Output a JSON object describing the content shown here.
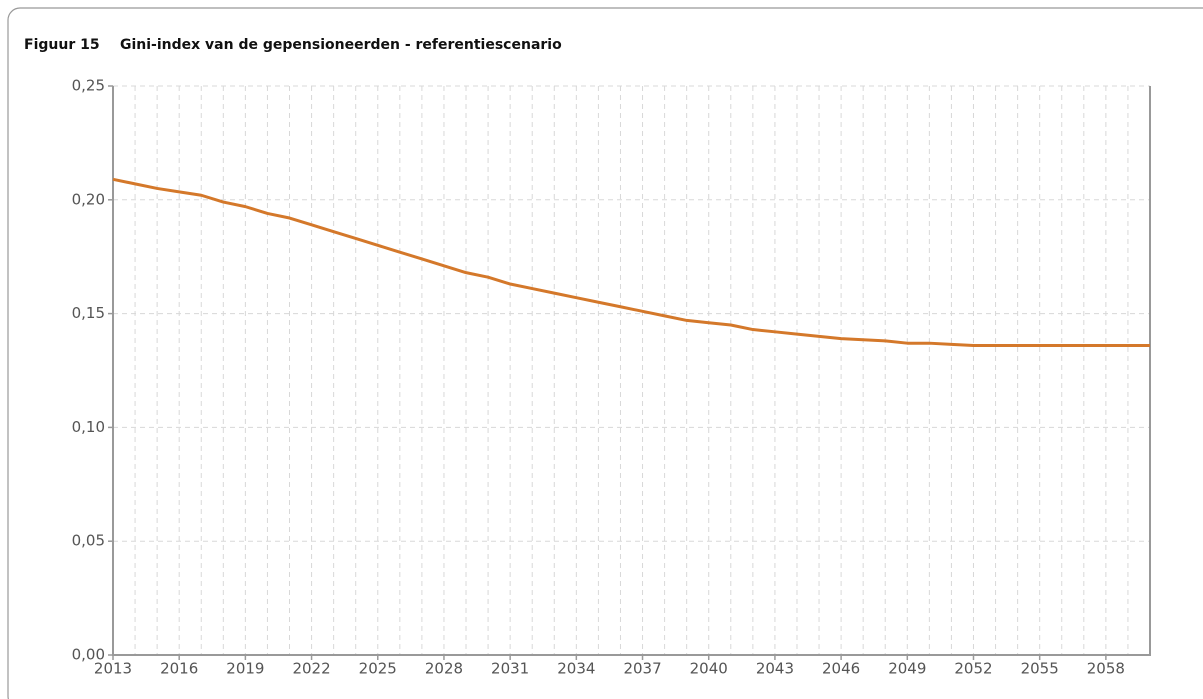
{
  "chart_data": {
    "type": "line",
    "figure_label": "Figuur 15",
    "title": "Gini-index van de gepensioneerden - referentiescenario",
    "x": [
      2013,
      2014,
      2015,
      2016,
      2017,
      2018,
      2019,
      2020,
      2021,
      2022,
      2023,
      2024,
      2025,
      2026,
      2027,
      2028,
      2029,
      2030,
      2031,
      2032,
      2033,
      2034,
      2035,
      2036,
      2037,
      2038,
      2039,
      2040,
      2041,
      2042,
      2043,
      2044,
      2045,
      2046,
      2047,
      2048,
      2049,
      2050,
      2051,
      2052,
      2053,
      2054,
      2055,
      2056,
      2057,
      2058,
      2059,
      2060
    ],
    "series": [
      {
        "name": "Gini-index",
        "color": "#d4782a",
        "values": [
          0.209,
          0.207,
          0.205,
          0.2035,
          0.202,
          0.199,
          0.197,
          0.194,
          0.192,
          0.189,
          0.186,
          0.183,
          0.18,
          0.177,
          0.174,
          0.171,
          0.168,
          0.166,
          0.163,
          0.161,
          0.159,
          0.157,
          0.155,
          0.153,
          0.151,
          0.149,
          0.147,
          0.146,
          0.145,
          0.143,
          0.142,
          0.141,
          0.14,
          0.139,
          0.1385,
          0.138,
          0.137,
          0.137,
          0.1365,
          0.136,
          0.136,
          0.136,
          0.136,
          0.136,
          0.136,
          0.136,
          0.136,
          0.136
        ]
      }
    ],
    "xlim": [
      2013,
      2060
    ],
    "xticks": [
      2013,
      2016,
      2019,
      2022,
      2025,
      2028,
      2031,
      2034,
      2037,
      2040,
      2043,
      2046,
      2049,
      2052,
      2055,
      2058
    ],
    "ylim": [
      0,
      0.25
    ],
    "yticks": [
      {
        "value": 0,
        "label": "0,00"
      },
      {
        "value": 0.05,
        "label": "0,05"
      },
      {
        "value": 0.1,
        "label": "0,10"
      },
      {
        "value": 0.15,
        "label": "0,15"
      },
      {
        "value": 0.2,
        "label": "0,20"
      },
      {
        "value": 0.25,
        "label": "0,25"
      }
    ],
    "grid": true
  }
}
